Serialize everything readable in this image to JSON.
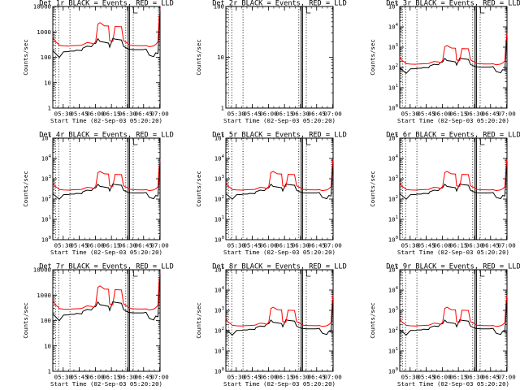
{
  "chart_data": {
    "type": "line",
    "layout": "3x3 grid of detector rate panels",
    "shared": {
      "xlabel": "Start Time (02-Sep-03 05:20:20)",
      "ylabel": "Counts/sec",
      "x_unit": "minutes after 05:20:20",
      "xlim": [
        0,
        100
      ],
      "x_tick_minutes": [
        9.67,
        24.67,
        39.67,
        54.67,
        69.67,
        84.67,
        99.67
      ],
      "x_tick_labels": [
        "05:30",
        "05:45",
        "06:00",
        "06:15",
        "06:30",
        "06:45",
        "07:00"
      ],
      "legend": {
        "black": "Events",
        "red": "LLD"
      },
      "series_colors": {
        "Events": "#000000",
        "LLD": "#ff0000"
      },
      "dotted_verticals_minutes": [
        2.5,
        5.5,
        16.0,
        68.0,
        75.0
      ],
      "solid_verticals_minutes": [
        70.2,
        71.5
      ],
      "time_minutes": [
        0,
        2,
        5,
        6,
        10,
        15,
        16,
        20,
        22,
        27,
        28,
        32,
        36,
        38,
        40,
        42,
        44,
        48,
        52,
        53,
        56,
        58,
        64,
        66,
        70,
        72,
        76,
        78,
        80,
        84,
        87,
        90,
        94,
        96,
        98,
        99,
        100
      ],
      "events_shape": [
        180,
        150,
        110,
        98,
        165,
        168,
        175,
        175,
        190,
        185,
        230,
        275,
        260,
        340,
        355,
        540,
        420,
        390,
        360,
        250,
        560,
        520,
        480,
        270,
        215,
        205,
        200,
        200,
        200,
        200,
        210,
        120,
        105,
        150,
        140,
        1100,
        12000
      ],
      "lld_shape": [
        650,
        430,
        340,
        295,
        280,
        275,
        280,
        288,
        290,
        300,
        315,
        380,
        360,
        330,
        420,
        2000,
        2300,
        1750,
        1700,
        450,
        420,
        1650,
        1600,
        450,
        350,
        300,
        290,
        285,
        285,
        282,
        290,
        260,
        280,
        320,
        400,
        3300,
        9000
      ]
    },
    "panels": [
      {
        "title": "Det 1r BLACK = Events, RED = LLD",
        "ylim": [
          1,
          10000
        ],
        "y_ticks": [
          {
            "v": 1,
            "t": "1"
          },
          {
            "v": 10,
            "t": "10"
          },
          {
            "v": 100,
            "t": "100"
          },
          {
            "v": 1000,
            "t": "1000"
          },
          {
            "v": 10000,
            "t": "10000"
          }
        ],
        "y_scale": 1,
        "show_data": true
      },
      {
        "title": "Det 2r BLACK = Events, RED = LLD",
        "ylim": [
          1,
          100
        ],
        "y_ticks": [
          {
            "v": 1,
            "t": "1"
          },
          {
            "v": 10,
            "t": "10"
          },
          {
            "v": 100,
            "t": "100"
          }
        ],
        "y_scale": 1,
        "show_data": false
      },
      {
        "title": "Det 3r BLACK = Events, RED = LLD",
        "ylim": [
          1,
          100000
        ],
        "y_ticks": [
          {
            "v": 1,
            "b": "10",
            "e": "0"
          },
          {
            "v": 10,
            "b": "10",
            "e": "1"
          },
          {
            "v": 100,
            "b": "10",
            "e": "2"
          },
          {
            "v": 1000,
            "b": "10",
            "e": "3"
          },
          {
            "v": 10000,
            "b": "10",
            "e": "4"
          },
          {
            "v": 100000,
            "b": "10",
            "e": "5"
          }
        ],
        "y_scale": 0.52,
        "show_data": true
      },
      {
        "title": "Det 4r BLACK = Events, RED = LLD",
        "ylim": [
          1,
          100000
        ],
        "y_ticks": [
          {
            "v": 1,
            "b": "10",
            "e": "0"
          },
          {
            "v": 10,
            "b": "10",
            "e": "1"
          },
          {
            "v": 100,
            "b": "10",
            "e": "2"
          },
          {
            "v": 1000,
            "b": "10",
            "e": "3"
          },
          {
            "v": 10000,
            "b": "10",
            "e": "4"
          },
          {
            "v": 100000,
            "b": "10",
            "e": "5"
          }
        ],
        "y_scale": 1,
        "show_data": true
      },
      {
        "title": "Det 5r BLACK = Events, RED = LLD",
        "ylim": [
          1,
          100000
        ],
        "y_ticks": [
          {
            "v": 1,
            "b": "10",
            "e": "0"
          },
          {
            "v": 10,
            "b": "10",
            "e": "1"
          },
          {
            "v": 100,
            "b": "10",
            "e": "2"
          },
          {
            "v": 1000,
            "b": "10",
            "e": "3"
          },
          {
            "v": 10000,
            "b": "10",
            "e": "4"
          },
          {
            "v": 100000,
            "b": "10",
            "e": "5"
          }
        ],
        "y_scale": 1,
        "show_data": true
      },
      {
        "title": "Det 6r BLACK = Events, RED = LLD",
        "ylim": [
          1,
          100000
        ],
        "y_ticks": [
          {
            "v": 1,
            "b": "10",
            "e": "0"
          },
          {
            "v": 10,
            "b": "10",
            "e": "1"
          },
          {
            "v": 100,
            "b": "10",
            "e": "2"
          },
          {
            "v": 1000,
            "b": "10",
            "e": "3"
          },
          {
            "v": 10000,
            "b": "10",
            "e": "4"
          },
          {
            "v": 100000,
            "b": "10",
            "e": "5"
          }
        ],
        "y_scale": 1,
        "show_data": true
      },
      {
        "title": "Det 7r BLACK = Events, RED = LLD",
        "ylim": [
          1,
          10000
        ],
        "y_ticks": [
          {
            "v": 1,
            "t": "1"
          },
          {
            "v": 10,
            "t": "10"
          },
          {
            "v": 100,
            "t": "100"
          },
          {
            "v": 1000,
            "t": "1000"
          },
          {
            "v": 10000,
            "t": "10000"
          }
        ],
        "y_scale": 1,
        "show_data": true
      },
      {
        "title": "Det 8r BLACK = Events, RED = LLD",
        "ylim": [
          1,
          100000
        ],
        "y_ticks": [
          {
            "v": 1,
            "b": "10",
            "e": "0"
          },
          {
            "v": 10,
            "b": "10",
            "e": "1"
          },
          {
            "v": 100,
            "b": "10",
            "e": "2"
          },
          {
            "v": 1000,
            "b": "10",
            "e": "3"
          },
          {
            "v": 10000,
            "b": "10",
            "e": "4"
          },
          {
            "v": 100000,
            "b": "10",
            "e": "5"
          }
        ],
        "y_scale": 0.62,
        "show_data": true
      },
      {
        "title": "Det 9r BLACK = Events, RED = LLD",
        "ylim": [
          1,
          100000
        ],
        "y_ticks": [
          {
            "v": 1,
            "b": "10",
            "e": "0"
          },
          {
            "v": 10,
            "b": "10",
            "e": "1"
          },
          {
            "v": 100,
            "b": "10",
            "e": "2"
          },
          {
            "v": 1000,
            "b": "10",
            "e": "3"
          },
          {
            "v": 10000,
            "b": "10",
            "e": "4"
          },
          {
            "v": 100000,
            "b": "10",
            "e": "5"
          }
        ],
        "y_scale": 0.62,
        "show_data": true
      }
    ]
  }
}
